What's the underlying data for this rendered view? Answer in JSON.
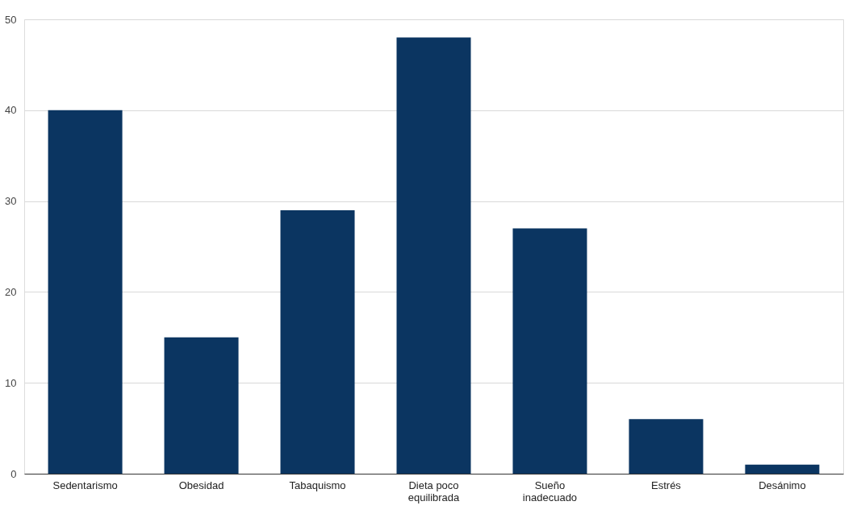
{
  "chart_data": {
    "type": "bar",
    "categories": [
      "Sedentarismo",
      "Obesidad",
      "Tabaquismo",
      "Dieta poco equilibrada",
      "Sueño inadecuado",
      "Estrés",
      "Desánimo"
    ],
    "values": [
      40,
      15,
      29,
      48,
      27,
      6,
      1
    ],
    "color": "#0b3561",
    "ylim": [
      0,
      50
    ],
    "yticks": [
      0,
      10,
      20,
      30,
      40,
      50
    ],
    "grid": "y"
  }
}
